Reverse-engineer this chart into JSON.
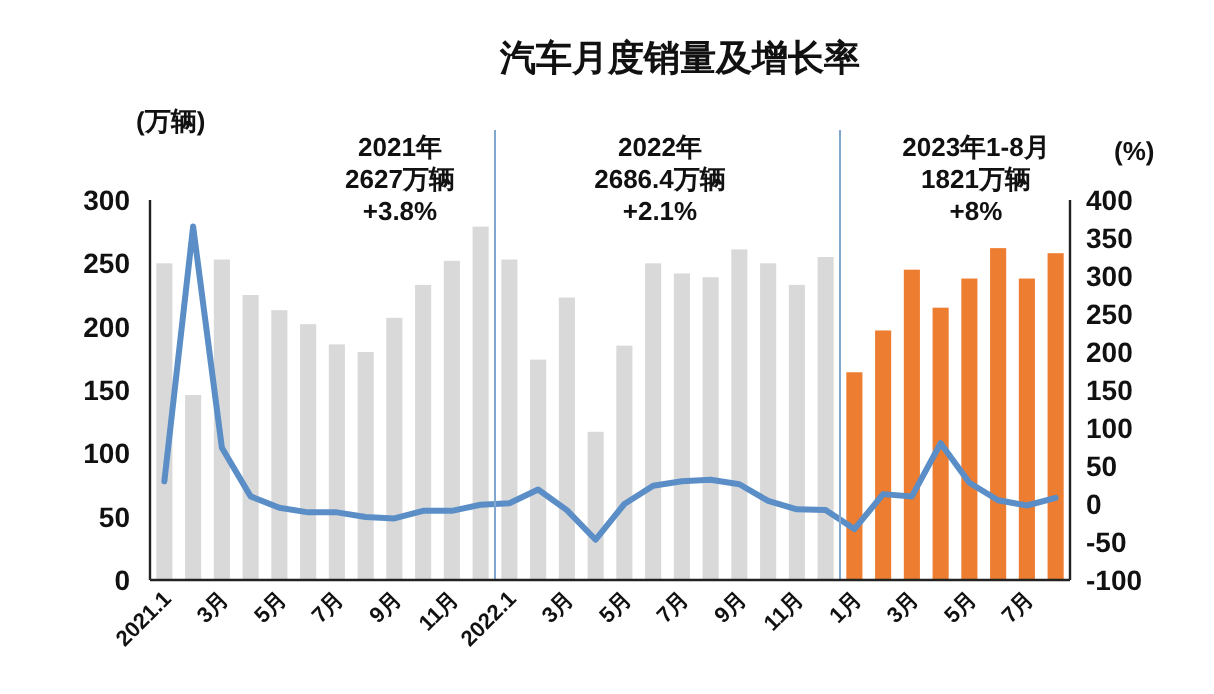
{
  "chart_data": {
    "type": "bar",
    "title": "汽车月度销量及增长率",
    "ylabel": "(万辆)",
    "y2label": "(%)",
    "categories": [
      "2021.1",
      null,
      "3月",
      null,
      "5月",
      null,
      "7月",
      null,
      "9月",
      null,
      "11月",
      null,
      "2022.1",
      null,
      "3月",
      null,
      "5月",
      null,
      "7月",
      null,
      "9月",
      null,
      "11月",
      null,
      "1月",
      null,
      "3月",
      null,
      "5月",
      null,
      "7月",
      null
    ],
    "series": [
      {
        "colors": [
          "#d9d9d9",
          "#d9d9d9",
          "#d9d9d9",
          "#d9d9d9",
          "#d9d9d9",
          "#d9d9d9",
          "#d9d9d9",
          "#d9d9d9",
          "#d9d9d9",
          "#d9d9d9",
          "#d9d9d9",
          "#d9d9d9",
          "#d9d9d9",
          "#d9d9d9",
          "#d9d9d9",
          "#d9d9d9",
          "#d9d9d9",
          "#d9d9d9",
          "#d9d9d9",
          "#d9d9d9",
          "#d9d9d9",
          "#d9d9d9",
          "#d9d9d9",
          "#d9d9d9",
          "#ed7d31",
          "#ed7d31",
          "#ed7d31",
          "#ed7d31",
          "#ed7d31",
          "#ed7d31",
          "#ed7d31",
          "#ed7d31"
        ],
        "values": [
          250,
          146,
          253,
          225,
          213,
          202,
          186,
          180,
          207,
          233,
          252,
          279,
          253,
          174,
          223,
          117,
          185,
          250,
          242,
          239,
          261,
          250,
          233,
          255,
          164,
          197,
          245,
          215,
          238,
          262,
          238,
          258
        ]
      },
      {
        "type": "line",
        "axis": "y2",
        "color": "#5b8ec6",
        "values": [
          30,
          365,
          74,
          10,
          -5,
          -11,
          -11,
          -17,
          -19,
          -9,
          -9,
          -1,
          1,
          19,
          -8,
          -47,
          0,
          24,
          30,
          32,
          26,
          4,
          -7,
          -8,
          -33,
          13,
          10,
          80,
          28,
          5,
          -2,
          8
        ]
      }
    ],
    "ylim": [
      0,
      300
    ],
    "yticks": [
      0,
      50,
      100,
      150,
      200,
      250,
      300
    ],
    "y2lim": [
      -100,
      400
    ],
    "y2ticks": [
      -100,
      -50,
      0,
      50,
      100,
      150,
      200,
      250,
      300,
      350,
      400
    ],
    "annotations": [
      "2021年\n2627万辆\n+3.8%",
      "2022年\n2686.4万辆\n+2.1%",
      "2023年1-8月\n1821万辆\n+8%"
    ],
    "grid": false
  }
}
